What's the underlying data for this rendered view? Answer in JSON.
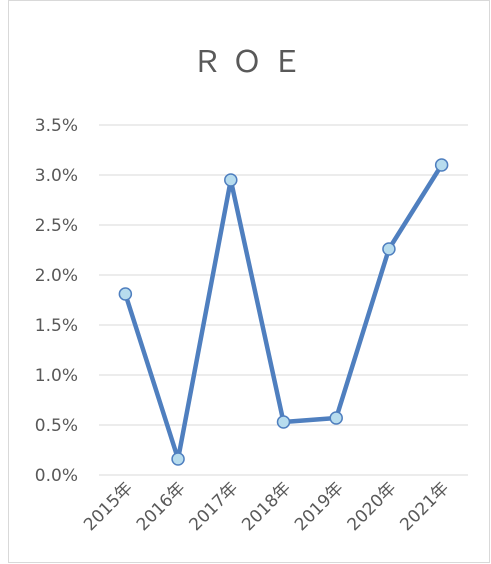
{
  "chart_data": {
    "type": "line",
    "title": "ＲＯＥ",
    "categories": [
      "2015年",
      "2016年",
      "2017年",
      "2018年",
      "2019年",
      "2020年",
      "2021年"
    ],
    "series": [
      {
        "name": "ROE",
        "color": "#4f7fbf",
        "values": [
          1.81,
          0.16,
          2.95,
          0.53,
          0.57,
          2.26,
          3.1
        ]
      }
    ],
    "ylim": [
      0,
      3.5
    ],
    "yticks": [
      {
        "value": 0,
        "label": "0.0%"
      },
      {
        "value": 0.5,
        "label": "0.5%"
      },
      {
        "value": 1,
        "label": "1.0%"
      },
      {
        "value": 1.5,
        "label": "1.5%"
      },
      {
        "value": 2,
        "label": "2.0%"
      },
      {
        "value": 2.5,
        "label": "2.5%"
      },
      {
        "value": 3,
        "label": "3.0%"
      },
      {
        "value": 3.5,
        "label": "3.5%"
      }
    ],
    "grid": true
  }
}
